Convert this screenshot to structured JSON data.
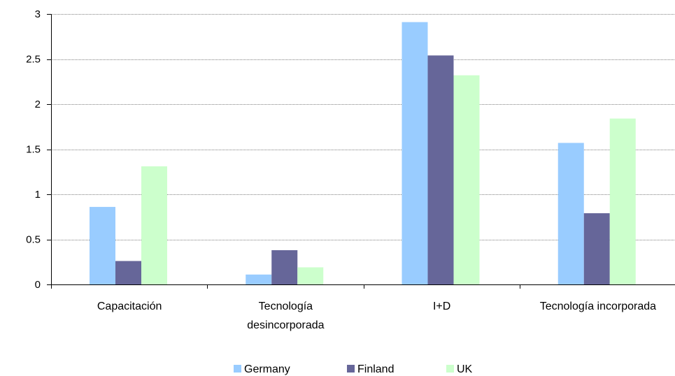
{
  "chart_data": {
    "type": "bar",
    "categories": [
      [
        "Capacitación"
      ],
      [
        "Tecnología",
        "desincorporada"
      ],
      [
        "I+D"
      ],
      [
        "Tecnología incorporada"
      ]
    ],
    "series": [
      {
        "name": "Germany",
        "color": "#99ccff",
        "values": [
          0.86,
          0.11,
          2.91,
          1.57
        ]
      },
      {
        "name": "Finland",
        "color": "#666699",
        "values": [
          0.26,
          0.38,
          2.54,
          0.79
        ]
      },
      {
        "name": "UK",
        "color": "#ccffcc",
        "values": [
          1.31,
          0.19,
          2.32,
          1.84
        ]
      }
    ],
    "y_ticks": [
      "0",
      "0.5",
      "1",
      "1.5",
      "2",
      "2.5",
      "3"
    ],
    "ylim": [
      0,
      3
    ],
    "grid": true,
    "legend_position": "bottom"
  }
}
